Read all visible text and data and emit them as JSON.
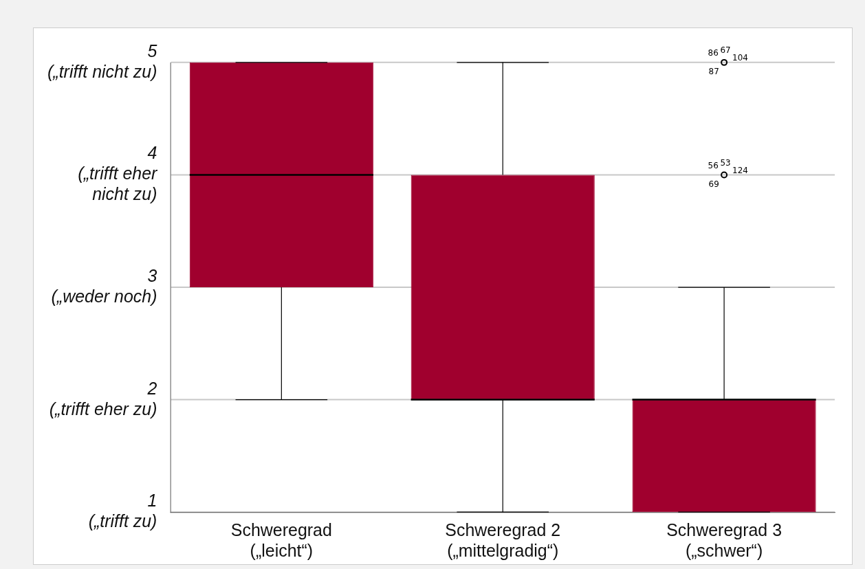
{
  "chart_data": {
    "type": "box",
    "categories": [
      "Schweregrad\n(„leicht“)",
      "Schweregrad 2\n(„mittelgradig“)",
      "Schweregrad 3\n(„schwer“)"
    ],
    "color": "#a0002e",
    "boxes": [
      {
        "low": 2,
        "q1": 3,
        "median": 4,
        "q3": 5,
        "high": 5
      },
      {
        "low": 1,
        "q1": 2,
        "median": 2,
        "q3": 4,
        "high": 5
      },
      {
        "low": 1,
        "q1": 1,
        "median": 2,
        "q3": 2,
        "high": 3,
        "outliers": [
          5,
          4
        ]
      }
    ],
    "ylim": [
      1,
      5
    ],
    "yticks": [
      {
        "value": 1,
        "label": "1\n(„trifft zu)"
      },
      {
        "value": 2,
        "label": "2\n(„trifft eher zu)"
      },
      {
        "value": 3,
        "label": "3\n(„weder noch)"
      },
      {
        "value": 4,
        "label": "4\n(„trifft eher\nnicht zu)"
      },
      {
        "value": 5,
        "label": "5\n(„trifft nicht zu)"
      }
    ],
    "grid": "y",
    "annotations": [
      "86",
      "67",
      "104",
      "87",
      "56",
      "53",
      "124",
      "69"
    ]
  }
}
